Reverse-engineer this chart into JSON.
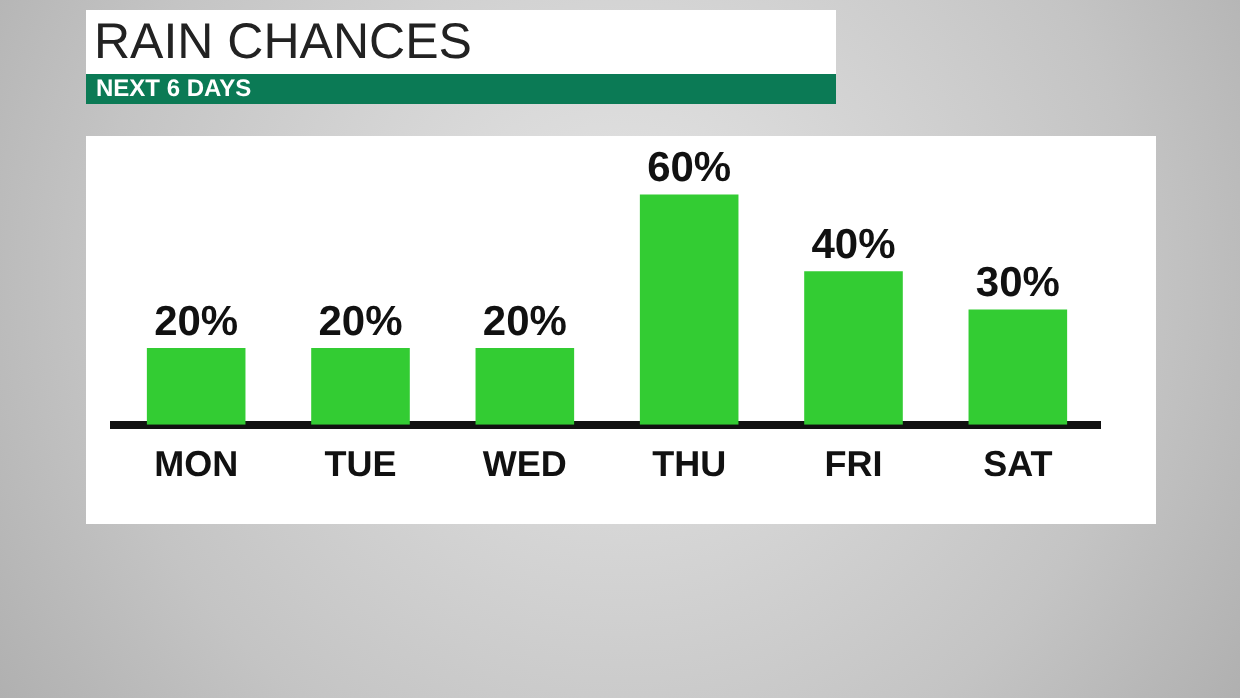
{
  "chart_data": {
    "type": "bar",
    "title": "RAIN CHANCES",
    "subtitle": "NEXT 6 DAYS",
    "categories": [
      "MON",
      "TUE",
      "WED",
      "THU",
      "FRI",
      "SAT"
    ],
    "values": [
      20,
      20,
      20,
      60,
      40,
      30
    ],
    "value_labels": [
      "20%",
      "20%",
      "20%",
      "60%",
      "40%",
      "30%"
    ],
    "color": "#33cc33",
    "grid": false,
    "legend": false,
    "tick_labels": "x"
  }
}
